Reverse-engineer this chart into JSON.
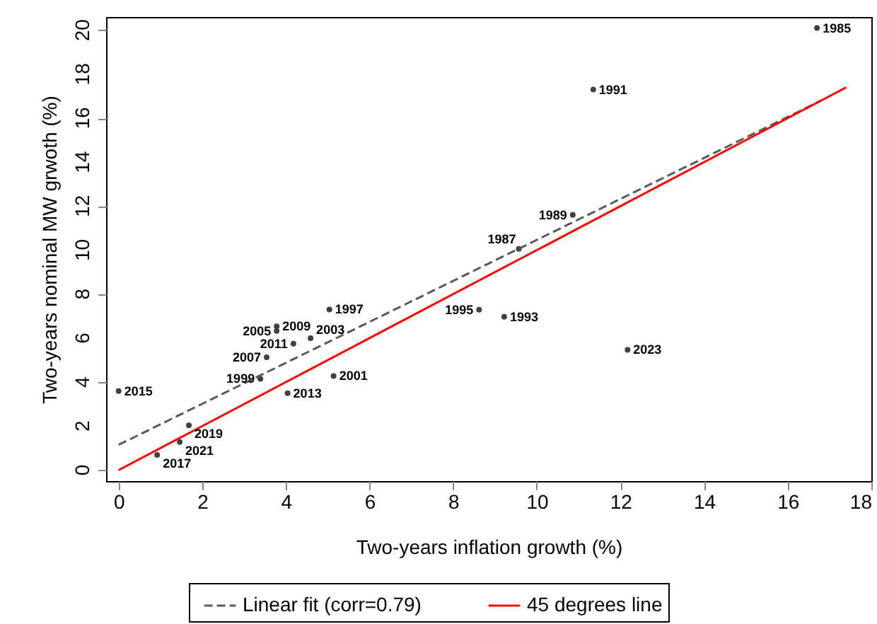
{
  "chart_data": {
    "type": "scatter",
    "xlabel": "Two-years inflation growth (%)",
    "ylabel": "Two-years nominal MW grwoth (%)",
    "xlim": [
      -0.3,
      18
    ],
    "ylim": [
      -0.5,
      20.6
    ],
    "xticks": [
      0,
      2,
      4,
      6,
      8,
      10,
      12,
      14,
      16,
      18
    ],
    "yticks": [
      0,
      2,
      4,
      6,
      8,
      10,
      12,
      14,
      16,
      18,
      20
    ],
    "grid": false,
    "legend": "bottom",
    "series": [
      {
        "type": "scatter",
        "color": "#404040",
        "marker": "circle",
        "x": [
          16.7,
          11.35,
          10.86,
          9.57,
          8.62,
          9.22,
          12.17,
          5.04,
          3.78,
          3.78,
          4.59,
          4.18,
          3.54,
          3.39,
          5.14,
          4.04,
          0.0,
          1.68,
          1.46,
          0.92
        ],
        "values": [
          20.1,
          17.3,
          11.6,
          10.06,
          7.29,
          6.97,
          5.47,
          7.3,
          6.54,
          6.33,
          6.0,
          5.75,
          5.13,
          4.15,
          4.28,
          3.5,
          3.59,
          2.03,
          1.28,
          0.69
        ]
      },
      {
        "type": "line",
        "name": "Linear fit (corr=0.79)",
        "color": "#5a5a5a",
        "line_style": "dashed",
        "x": [
          0,
          16.8
        ],
        "values": [
          1.15,
          16.8
        ]
      },
      {
        "type": "line",
        "name": "45 degrees line",
        "color": "#ff0000",
        "line_style": "solid",
        "x": [
          0,
          17.4
        ],
        "values": [
          0,
          17.4
        ]
      }
    ],
    "annotations": [
      {
        "text": "1985",
        "x": 16.7,
        "y": 20.1
      },
      {
        "text": "1991",
        "x": 11.35,
        "y": 17.3
      },
      {
        "text": "1989",
        "x": 10.86,
        "y": 11.6
      },
      {
        "text": "1987",
        "x": 9.57,
        "y": 10.06
      },
      {
        "text": "1995",
        "x": 8.62,
        "y": 7.29
      },
      {
        "text": "1993",
        "x": 9.22,
        "y": 6.97
      },
      {
        "text": "2023",
        "x": 12.17,
        "y": 5.47
      },
      {
        "text": "1997",
        "x": 5.04,
        "y": 7.3
      },
      {
        "text": "2009",
        "x": 3.78,
        "y": 6.54
      },
      {
        "text": "2005",
        "x": 3.78,
        "y": 6.33
      },
      {
        "text": "2003",
        "x": 4.59,
        "y": 6.0
      },
      {
        "text": "2011",
        "x": 4.18,
        "y": 5.75
      },
      {
        "text": "2007",
        "x": 3.54,
        "y": 5.13
      },
      {
        "text": "1999",
        "x": 3.39,
        "y": 4.15
      },
      {
        "text": "2001",
        "x": 5.14,
        "y": 4.28
      },
      {
        "text": "2013",
        "x": 4.04,
        "y": 3.5
      },
      {
        "text": "2015",
        "x": 0.0,
        "y": 3.59
      },
      {
        "text": "2019",
        "x": 1.68,
        "y": 2.03
      },
      {
        "text": "2021",
        "x": 1.46,
        "y": 1.28
      },
      {
        "text": "2017",
        "x": 0.92,
        "y": 0.69
      }
    ]
  }
}
